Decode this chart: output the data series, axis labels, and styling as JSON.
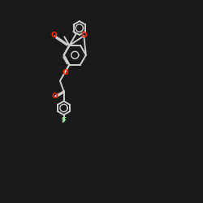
{
  "bg_color": "#1a1a1a",
  "bond_color": "#cccccc",
  "oxygen_color": "#ff2200",
  "fluorine_color": "#90ee90",
  "bond_width": 1.4,
  "figsize": [
    2.5,
    2.5
  ],
  "dpi": 100,
  "xlim": [
    -4.5,
    5.5
  ],
  "ylim": [
    -5.5,
    4.0
  ]
}
